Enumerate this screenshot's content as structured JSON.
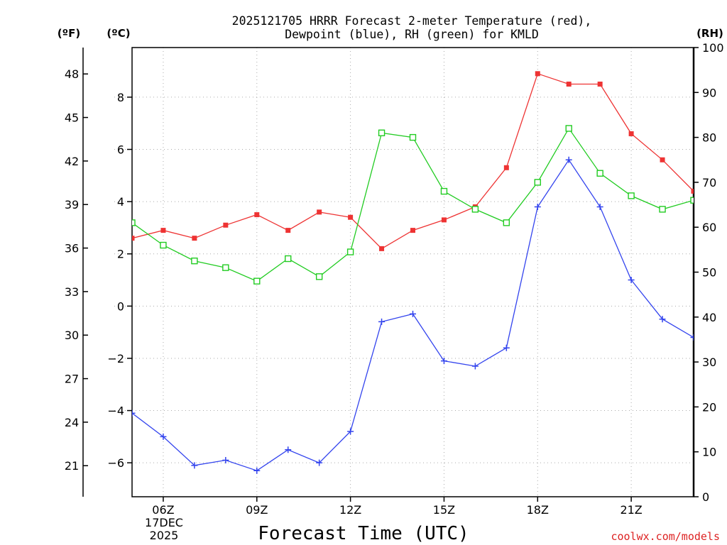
{
  "chart_data": {
    "type": "line",
    "title_line1": "2025121705 HRRR Forecast 2-meter Temperature (red),",
    "title_line2": "Dewpoint (blue), RH (green) for KMLD",
    "xlabel": "Forecast Time (UTC)",
    "unit_f": "(ºF)",
    "unit_c": "(ºC)",
    "unit_rh": "(RH)",
    "date_line1": "17DEC",
    "date_line2": "2025",
    "credit": "coolwx.com/models",
    "xlim": [
      5,
      23
    ],
    "ylim_c": [
      -7.3,
      9.9
    ],
    "ylim_rh": [
      0,
      100
    ],
    "x": [
      5,
      6,
      7,
      8,
      9,
      10,
      11,
      12,
      13,
      14,
      15,
      16,
      17,
      18,
      19,
      20,
      21,
      22,
      23
    ],
    "x_ticks": [
      {
        "x": 6,
        "label": "06Z"
      },
      {
        "x": 9,
        "label": "09Z"
      },
      {
        "x": 12,
        "label": "12Z"
      },
      {
        "x": 15,
        "label": "15Z"
      },
      {
        "x": 18,
        "label": "18Z"
      },
      {
        "x": 21,
        "label": "21Z"
      }
    ],
    "c_ticks": [
      {
        "v": 8,
        "label": "8"
      },
      {
        "v": 6,
        "label": "6"
      },
      {
        "v": 4,
        "label": "4"
      },
      {
        "v": 2,
        "label": "2"
      },
      {
        "v": 0,
        "label": "0"
      },
      {
        "v": -2,
        "label": "−2"
      },
      {
        "v": -4,
        "label": "−4"
      },
      {
        "v": -6,
        "label": "−6"
      }
    ],
    "f_ticks": [
      {
        "v": 48,
        "label": "48"
      },
      {
        "v": 45,
        "label": "45"
      },
      {
        "v": 42,
        "label": "42"
      },
      {
        "v": 39,
        "label": "39"
      },
      {
        "v": 36,
        "label": "36"
      },
      {
        "v": 33,
        "label": "33"
      },
      {
        "v": 30,
        "label": "30"
      },
      {
        "v": 27,
        "label": "27"
      },
      {
        "v": 24,
        "label": "24"
      },
      {
        "v": 21,
        "label": "21"
      }
    ],
    "rh_ticks": [
      {
        "v": 100,
        "label": "100"
      },
      {
        "v": 90,
        "label": "90"
      },
      {
        "v": 80,
        "label": "80"
      },
      {
        "v": 70,
        "label": "70"
      },
      {
        "v": 60,
        "label": "60"
      },
      {
        "v": 50,
        "label": "50"
      },
      {
        "v": 40,
        "label": "40"
      },
      {
        "v": 30,
        "label": "30"
      },
      {
        "v": 20,
        "label": "20"
      },
      {
        "v": 10,
        "label": "10"
      },
      {
        "v": 0,
        "label": "0"
      }
    ],
    "series": [
      {
        "name": "Temperature",
        "unit": "C",
        "color": "#ee3333",
        "marker": "filled-square",
        "values": [
          2.6,
          2.9,
          2.6,
          3.1,
          3.5,
          2.9,
          3.6,
          3.4,
          2.2,
          2.9,
          3.3,
          3.8,
          5.3,
          8.9,
          8.5,
          8.5,
          6.6,
          5.6,
          4.4
        ]
      },
      {
        "name": "Dewpoint",
        "unit": "C",
        "color": "#3344ee",
        "marker": "plus",
        "values": [
          -4.1,
          -5.0,
          -6.1,
          -5.9,
          -6.3,
          -5.5,
          -6.0,
          -4.8,
          -0.6,
          -0.3,
          -2.1,
          -2.3,
          -1.6,
          3.8,
          5.6,
          3.8,
          1.0,
          -0.5,
          -1.2
        ]
      },
      {
        "name": "RH",
        "unit": "%",
        "color": "#22cc22",
        "marker": "open-square",
        "values": [
          61,
          56,
          52.5,
          51,
          48,
          53,
          49,
          54.5,
          81,
          80,
          68,
          64,
          61,
          70,
          82,
          72,
          67,
          64,
          66
        ]
      }
    ]
  }
}
